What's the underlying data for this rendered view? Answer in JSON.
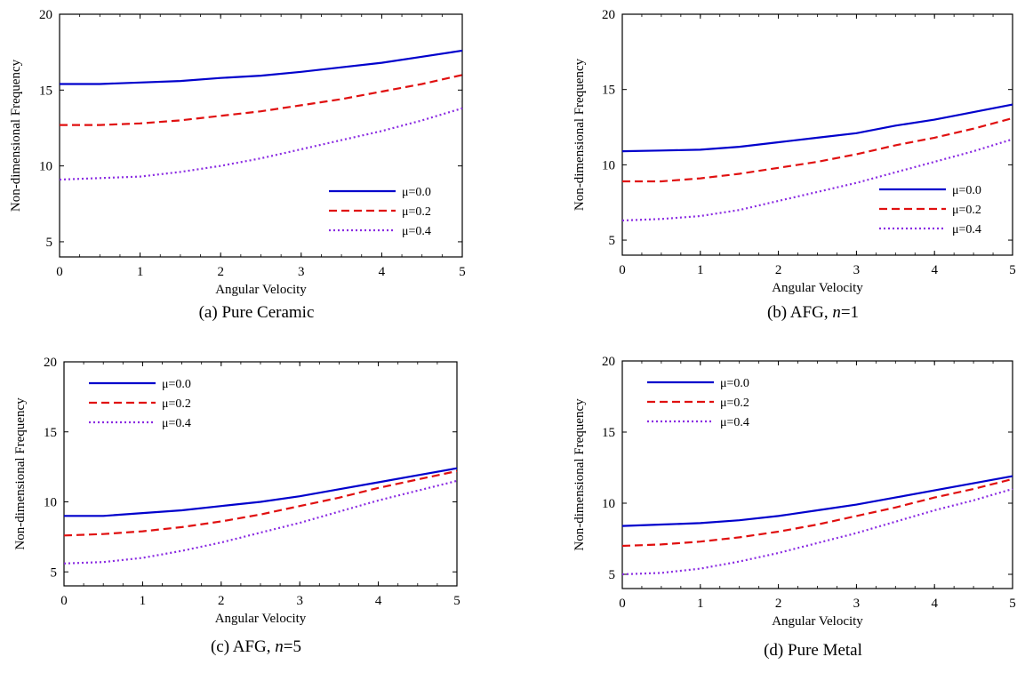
{
  "chart_data": [
    {
      "type": "line",
      "caption": "(a) Pure Ceramic",
      "xlabel": "Angular Velocity",
      "ylabel": "Non-dimensional Frequency",
      "xlim": [
        0,
        5
      ],
      "ylim": [
        4,
        20
      ],
      "xticks": [
        "0",
        "1",
        "2",
        "3",
        "4",
        "5"
      ],
      "yticks": [
        "5",
        "10",
        "15",
        "20"
      ],
      "legend_position": "bottom-right",
      "grid": false,
      "series": [
        {
          "name": "μ=0.0",
          "color": "#0000cc",
          "dash": "solid",
          "x": [
            0,
            0.5,
            1,
            1.5,
            2,
            2.5,
            3,
            3.5,
            4,
            4.5,
            5
          ],
          "y": [
            15.4,
            15.4,
            15.5,
            15.6,
            15.8,
            15.95,
            16.2,
            16.5,
            16.8,
            17.2,
            17.6
          ]
        },
        {
          "name": "μ=0.2",
          "color": "#e01010",
          "dash": "dashed",
          "x": [
            0,
            0.5,
            1,
            1.5,
            2,
            2.5,
            3,
            3.5,
            4,
            4.5,
            5
          ],
          "y": [
            12.7,
            12.7,
            12.8,
            13.0,
            13.3,
            13.6,
            14.0,
            14.4,
            14.9,
            15.4,
            16.0
          ]
        },
        {
          "name": "μ=0.4",
          "color": "#8a2be2",
          "dash": "dotted",
          "x": [
            0,
            0.5,
            1,
            1.5,
            2,
            2.5,
            3,
            3.5,
            4,
            4.5,
            5
          ],
          "y": [
            9.1,
            9.2,
            9.3,
            9.6,
            10.0,
            10.5,
            11.1,
            11.7,
            12.3,
            13.0,
            13.8
          ]
        }
      ]
    },
    {
      "type": "line",
      "caption": "(b) AFG, n=1",
      "caption_prefix": "(b) AFG, ",
      "caption_italic": "n",
      "caption_suffix": "=1",
      "xlabel": "Angular Velocity",
      "ylabel": "Non-dimensional Frequency",
      "xlim": [
        0,
        5
      ],
      "ylim": [
        4,
        20
      ],
      "xticks": [
        "0",
        "1",
        "2",
        "3",
        "4",
        "5"
      ],
      "yticks": [
        "5",
        "10",
        "15",
        "20"
      ],
      "legend_position": "bottom-right",
      "grid": false,
      "series": [
        {
          "name": "μ=0.0",
          "color": "#0000cc",
          "dash": "solid",
          "x": [
            0,
            0.5,
            1,
            1.5,
            2,
            2.5,
            3,
            3.5,
            4,
            4.5,
            5
          ],
          "y": [
            10.9,
            10.95,
            11.0,
            11.2,
            11.5,
            11.8,
            12.1,
            12.6,
            13.0,
            13.5,
            14.0
          ]
        },
        {
          "name": "μ=0.2",
          "color": "#e01010",
          "dash": "dashed",
          "x": [
            0,
            0.5,
            1,
            1.5,
            2,
            2.5,
            3,
            3.5,
            4,
            4.5,
            5
          ],
          "y": [
            8.9,
            8.9,
            9.1,
            9.4,
            9.8,
            10.2,
            10.7,
            11.3,
            11.8,
            12.4,
            13.1
          ]
        },
        {
          "name": "μ=0.4",
          "color": "#8a2be2",
          "dash": "dotted",
          "x": [
            0,
            0.5,
            1,
            1.5,
            2,
            2.5,
            3,
            3.5,
            4,
            4.5,
            5
          ],
          "y": [
            6.3,
            6.4,
            6.6,
            7.0,
            7.6,
            8.2,
            8.8,
            9.5,
            10.2,
            10.9,
            11.7
          ]
        }
      ]
    },
    {
      "type": "line",
      "caption": "(c) AFG, n=5",
      "caption_prefix": "(c) AFG, ",
      "caption_italic": "n",
      "caption_suffix": "=5",
      "xlabel": "Angular Velocity",
      "ylabel": "Non-dimensional Frequency",
      "xlim": [
        0,
        5
      ],
      "ylim": [
        4,
        20
      ],
      "xticks": [
        "0",
        "1",
        "2",
        "3",
        "4",
        "5"
      ],
      "yticks": [
        "5",
        "10",
        "15",
        "20"
      ],
      "legend_position": "top-left",
      "grid": false,
      "series": [
        {
          "name": "μ=0.0",
          "color": "#0000cc",
          "dash": "solid",
          "x": [
            0,
            0.5,
            1,
            1.5,
            2,
            2.5,
            3,
            3.5,
            4,
            4.5,
            5
          ],
          "y": [
            9.0,
            9.0,
            9.2,
            9.4,
            9.7,
            10.0,
            10.4,
            10.9,
            11.4,
            11.9,
            12.4
          ]
        },
        {
          "name": "μ=0.2",
          "color": "#e01010",
          "dash": "dashed",
          "x": [
            0,
            0.5,
            1,
            1.5,
            2,
            2.5,
            3,
            3.5,
            4,
            4.5,
            5
          ],
          "y": [
            7.6,
            7.7,
            7.9,
            8.2,
            8.6,
            9.1,
            9.7,
            10.3,
            11.0,
            11.6,
            12.2
          ]
        },
        {
          "name": "μ=0.4",
          "color": "#8a2be2",
          "dash": "dotted",
          "x": [
            0,
            0.5,
            1,
            1.5,
            2,
            2.5,
            3,
            3.5,
            4,
            4.5,
            5
          ],
          "y": [
            5.6,
            5.7,
            6.0,
            6.5,
            7.1,
            7.8,
            8.5,
            9.3,
            10.1,
            10.8,
            11.5
          ]
        }
      ]
    },
    {
      "type": "line",
      "caption": "(d) Pure Metal",
      "xlabel": "Angular Velocity",
      "ylabel": "Non-dimensional Frequency",
      "xlim": [
        0,
        5
      ],
      "ylim": [
        4,
        20
      ],
      "xticks": [
        "0",
        "1",
        "2",
        "3",
        "4",
        "5"
      ],
      "yticks": [
        "5",
        "10",
        "15",
        "20"
      ],
      "legend_position": "top-left",
      "grid": false,
      "series": [
        {
          "name": "μ=0.0",
          "color": "#0000cc",
          "dash": "solid",
          "x": [
            0,
            0.5,
            1,
            1.5,
            2,
            2.5,
            3,
            3.5,
            4,
            4.5,
            5
          ],
          "y": [
            8.4,
            8.5,
            8.6,
            8.8,
            9.1,
            9.5,
            9.9,
            10.4,
            10.9,
            11.4,
            11.9
          ]
        },
        {
          "name": "μ=0.2",
          "color": "#e01010",
          "dash": "dashed",
          "x": [
            0,
            0.5,
            1,
            1.5,
            2,
            2.5,
            3,
            3.5,
            4,
            4.5,
            5
          ],
          "y": [
            7.0,
            7.1,
            7.3,
            7.6,
            8.0,
            8.5,
            9.1,
            9.7,
            10.4,
            11.0,
            11.7
          ]
        },
        {
          "name": "μ=0.4",
          "color": "#8a2be2",
          "dash": "dotted",
          "x": [
            0,
            0.5,
            1,
            1.5,
            2,
            2.5,
            3,
            3.5,
            4,
            4.5,
            5
          ],
          "y": [
            5.0,
            5.1,
            5.4,
            5.9,
            6.5,
            7.2,
            7.9,
            8.7,
            9.5,
            10.2,
            11.0
          ]
        }
      ]
    }
  ]
}
